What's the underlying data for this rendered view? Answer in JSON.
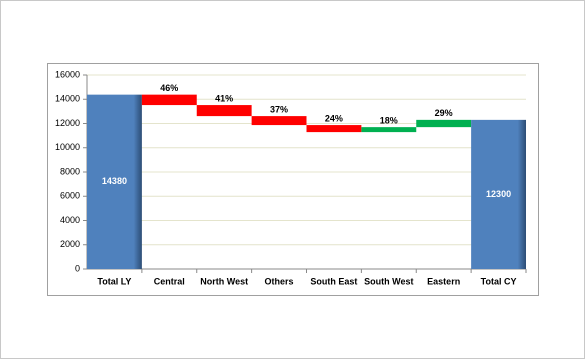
{
  "chart_data": {
    "type": "waterfall",
    "categories": [
      "Total LY",
      "Central",
      "North West",
      "Others",
      "South East",
      "South West",
      "Eastern",
      "Total CY"
    ],
    "values": [
      14380,
      -860,
      -910,
      -740,
      -580,
      410,
      600,
      12300
    ],
    "is_total": [
      true,
      false,
      false,
      false,
      false,
      false,
      false,
      true
    ],
    "change_labels": [
      null,
      "46%",
      "41%",
      "37%",
      "24%",
      "18%",
      "29%",
      null
    ],
    "colors": {
      "total": "#4f81bd",
      "decrease": "#ff0000",
      "increase": "#00b050"
    },
    "ylim": [
      0,
      16000
    ],
    "yticks": [
      0,
      2000,
      4000,
      6000,
      8000,
      10000,
      12000,
      14000,
      16000
    ],
    "grid": true
  }
}
